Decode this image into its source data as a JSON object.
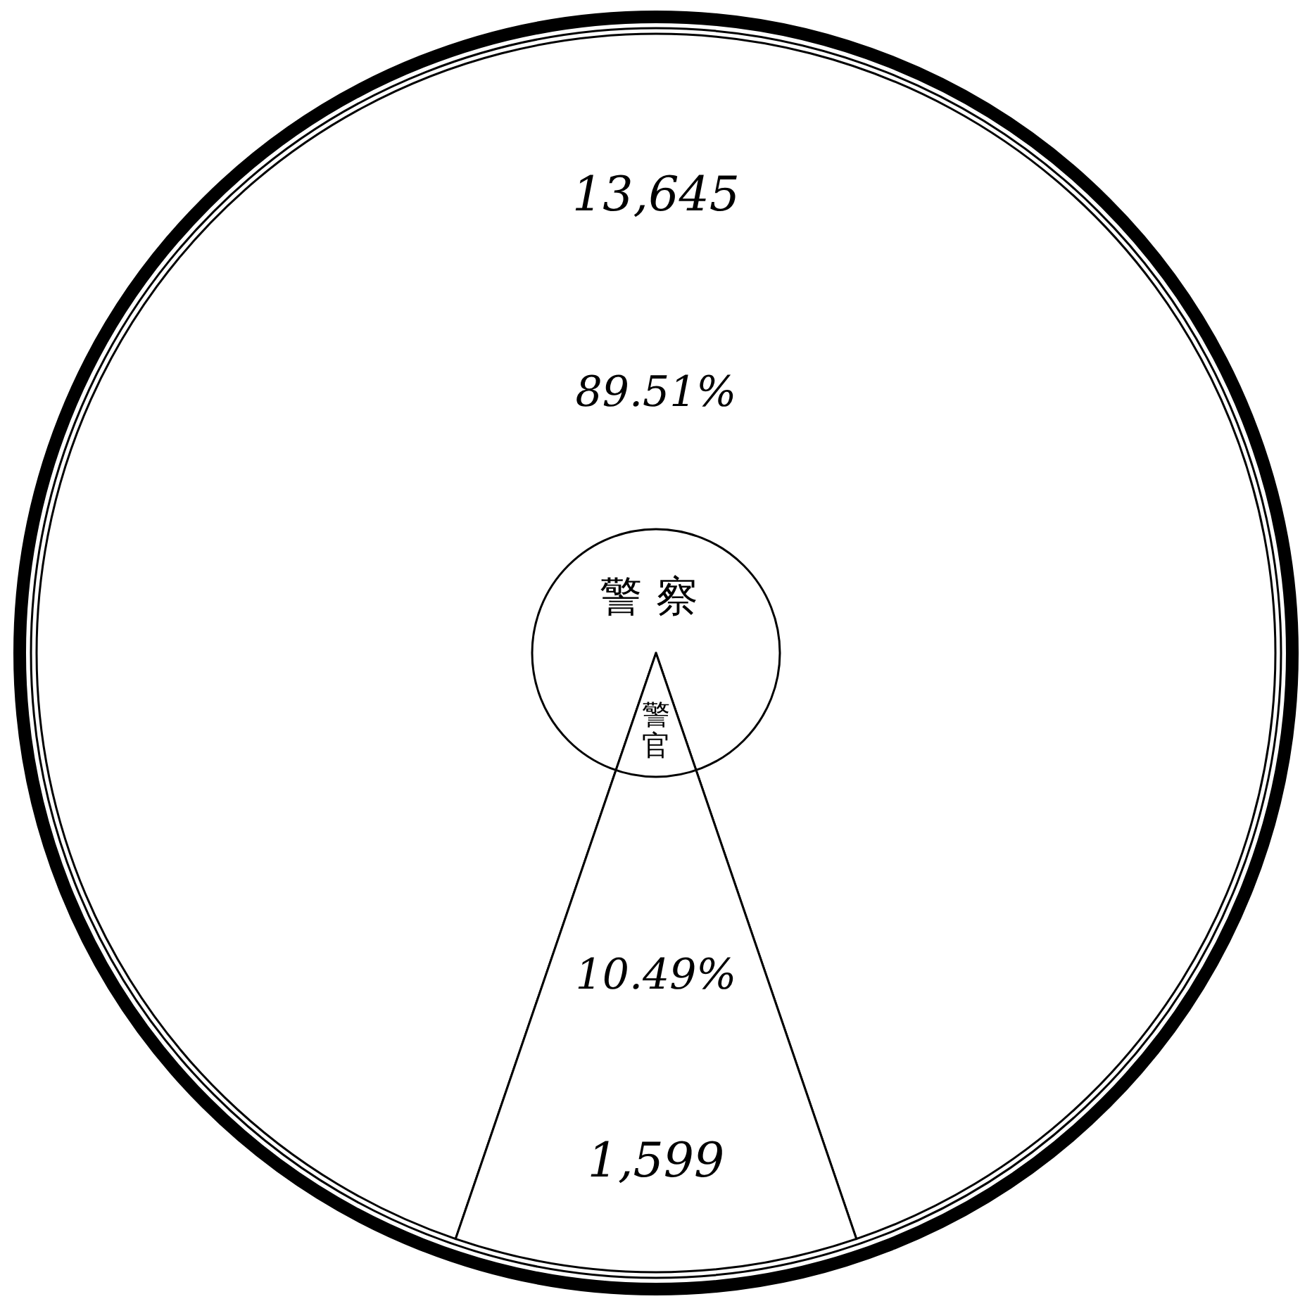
{
  "chart_data": {
    "type": "pie",
    "title": "警察",
    "categories": [
      null,
      "警官"
    ],
    "values": [
      13645,
      1599
    ],
    "colors": [
      "#ffffff",
      "#ffffff"
    ],
    "value_labels": [
      "13,645",
      "1,599"
    ],
    "annotations": [
      "89.51%",
      "10.49%"
    ],
    "legend": false
  }
}
